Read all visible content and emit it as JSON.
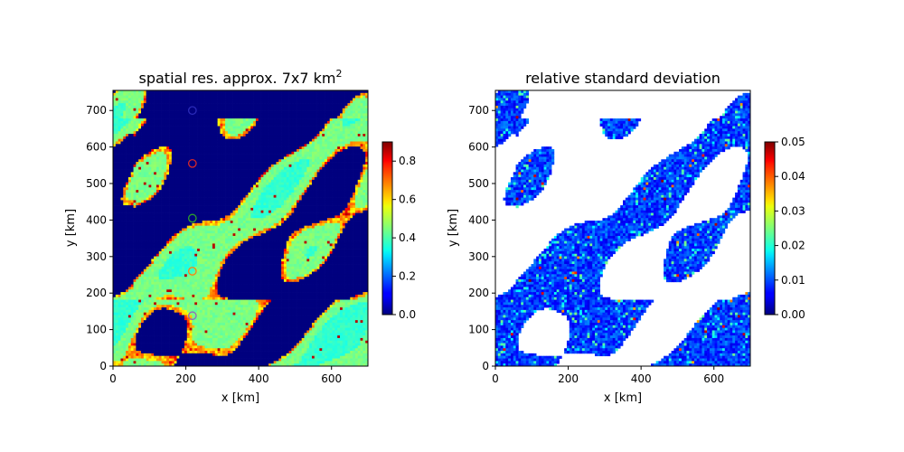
{
  "chart_data": [
    {
      "type": "heatmap",
      "title": "spatial res. approx. 7x7 km",
      "title_superscript": "2",
      "xlabel": "x [km]",
      "ylabel": "y [km]",
      "xlim": [
        0,
        700
      ],
      "ylim": [
        0,
        755
      ],
      "x_ticks": [
        "0",
        "200",
        "400",
        "600"
      ],
      "y_ticks": [
        "0",
        "100",
        "200",
        "300",
        "400",
        "500",
        "600",
        "700"
      ],
      "colormap": "jet",
      "colorbar": {
        "min": 0.0,
        "max": 0.9,
        "ticks": [
          "0.0",
          "0.2",
          "0.4",
          "0.6",
          "0.8"
        ]
      },
      "markers": [
        {
          "x": 218,
          "y": 700,
          "color": "#2a2ab8"
        },
        {
          "x": 218,
          "y": 555,
          "color": "#d62728"
        },
        {
          "x": 218,
          "y": 405,
          "color": "#2ca02c"
        },
        {
          "x": 218,
          "y": 260,
          "color": "#ff7f0e"
        },
        {
          "x": 218,
          "y": 138,
          "color": "#9467bd"
        }
      ]
    },
    {
      "type": "heatmap",
      "title": "relative standard deviation",
      "xlabel": "x [km]",
      "ylabel": "y [km]",
      "xlim": [
        0,
        700
      ],
      "ylim": [
        0,
        755
      ],
      "x_ticks": [
        "0",
        "200",
        "400",
        "600"
      ],
      "y_ticks": [
        "0",
        "100",
        "200",
        "300",
        "400",
        "500",
        "600",
        "700"
      ],
      "colormap": "jet",
      "colorbar": {
        "min": 0.0,
        "max": 0.05,
        "ticks": [
          "0.00",
          "0.01",
          "0.02",
          "0.03",
          "0.04",
          "0.05"
        ]
      }
    }
  ]
}
